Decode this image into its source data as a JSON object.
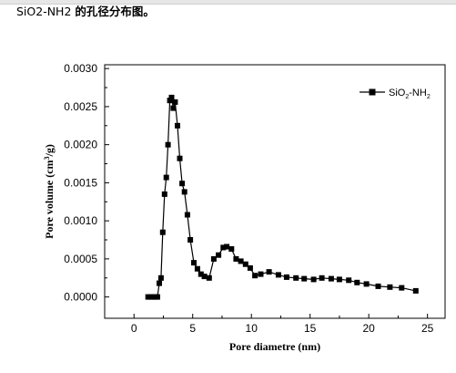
{
  "caption": {
    "prefix": "SiO2-NH2 ",
    "suffix": "的孔径分布图。"
  },
  "chart_data": {
    "type": "line",
    "title": "",
    "xlabel": "Pore diametre (nm)",
    "ylabel_main": "Pore volume (cm",
    "ylabel_sup": "3",
    "ylabel_end": "/g)",
    "xlim": [
      -2.5,
      26.5
    ],
    "ylim": [
      -0.00028,
      0.00305
    ],
    "xticks": [
      0,
      5,
      10,
      15,
      20,
      25
    ],
    "yticks": [
      "0.0000",
      "0.0005",
      "0.0010",
      "0.0015",
      "0.0020",
      "0.0025",
      "0.0030"
    ],
    "legend_position": "top-right",
    "series": [
      {
        "name": "SiO2-NH2",
        "legend_base": "SiO",
        "legend_sub1": "2",
        "legend_mid": "-NH",
        "legend_sub2": "2",
        "color": "#000000",
        "marker": "square",
        "x": [
          1.2,
          1.5,
          1.75,
          2.0,
          2.15,
          2.3,
          2.45,
          2.6,
          2.75,
          2.9,
          3.05,
          3.2,
          3.35,
          3.5,
          3.7,
          3.9,
          4.1,
          4.3,
          4.55,
          4.8,
          5.1,
          5.4,
          5.7,
          6.0,
          6.4,
          6.8,
          7.2,
          7.6,
          7.9,
          8.3,
          8.7,
          9.1,
          9.5,
          9.9,
          10.3,
          10.8,
          11.5,
          12.3,
          13.0,
          13.8,
          14.5,
          15.3,
          16.0,
          16.8,
          17.5,
          18.3,
          19.0,
          19.8,
          20.8,
          21.8,
          22.8,
          24.0
        ],
        "y": [
          0.0,
          0.0,
          0.0,
          0.0,
          0.00018,
          0.00025,
          0.00085,
          0.00135,
          0.00157,
          0.002,
          0.00258,
          0.00262,
          0.00248,
          0.00256,
          0.00225,
          0.00182,
          0.00149,
          0.00138,
          0.00108,
          0.00075,
          0.00045,
          0.00037,
          0.0003,
          0.00027,
          0.00025,
          0.0005,
          0.00055,
          0.00065,
          0.00066,
          0.00063,
          0.0005,
          0.00047,
          0.00043,
          0.00038,
          0.00028,
          0.0003,
          0.00033,
          0.00029,
          0.00026,
          0.00025,
          0.00024,
          0.00023,
          0.00025,
          0.00024,
          0.00023,
          0.00022,
          0.00019,
          0.00017,
          0.00014,
          0.00013,
          0.00012,
          8e-05
        ]
      }
    ]
  }
}
